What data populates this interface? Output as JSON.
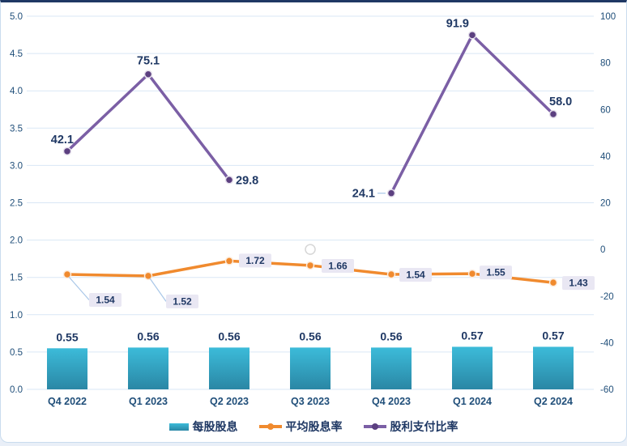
{
  "chart_data": {
    "type": "combo",
    "title": "",
    "categories": [
      "Q4 2022",
      "Q1 2023",
      "Q2 2023",
      "Q3 2023",
      "Q4 2023",
      "Q1 2024",
      "Q2 2024"
    ],
    "series": [
      {
        "name": "每股股息",
        "type": "bar",
        "axis": "left",
        "values": [
          0.55,
          0.56,
          0.56,
          0.56,
          0.56,
          0.57,
          0.57
        ],
        "labels": [
          "0.55",
          "0.56",
          "0.56",
          "0.56",
          "0.56",
          "0.57",
          "0.57"
        ],
        "color_top": "#3CBBD9",
        "color_bottom": "#2A87A5"
      },
      {
        "name": "平均股息率",
        "type": "line",
        "axis": "left",
        "values": [
          1.54,
          1.52,
          1.72,
          1.66,
          1.54,
          1.55,
          1.43
        ],
        "labels": [
          "1.54",
          "1.52",
          "1.72",
          "1.66",
          "1.54",
          "1.55",
          "1.43"
        ],
        "color": "#F08A2E"
      },
      {
        "name": "股利支付比率",
        "type": "line",
        "axis": "right",
        "values": [
          42.1,
          75.1,
          29.8,
          null,
          24.1,
          91.9,
          58.0
        ],
        "labels": [
          "42.1",
          "75.1",
          "29.8",
          "",
          "24.1",
          "91.9",
          "58.0"
        ],
        "color": "#7B5FA5",
        "marker_color": "#5C4080",
        "null_marker_category": "Q3 2023",
        "null_marker_value_on_right_axis": 0
      }
    ],
    "axes": {
      "left": {
        "min": 0,
        "max": 5,
        "ticks": [
          "5.0",
          "4.5",
          "4.0",
          "3.5",
          "3.0",
          "2.5",
          "2.0",
          "1.5",
          "1.0",
          "0.5",
          "0.0"
        ]
      },
      "right": {
        "min": -60,
        "max": 100,
        "ticks": [
          "100",
          "80",
          "60",
          "40",
          "20",
          "0",
          "-20",
          "-40",
          "-60"
        ]
      }
    },
    "grid": true,
    "legend_position": "bottom",
    "legend": [
      "每股股息",
      "平均股息率",
      "股利支付比率"
    ]
  },
  "colors": {
    "navy_label": "#1F3864",
    "axis_text": "#1F4E79",
    "gridline": "#D9E7F5",
    "orange_line": "#F08A2E",
    "purple_line": "#7B5FA5",
    "purple_marker": "#5C4080",
    "bar_top": "#3CBBD9",
    "bar_bottom": "#2A87A5",
    "label_box_bg": "#E9E7F3",
    "leader_line": "#A9C7E8",
    "null_marker_stroke": "#D6D6D6",
    "card_border": "#C9DCEE",
    "card_top_border": "#1F3864",
    "page_bg": "#E9EFF8"
  }
}
